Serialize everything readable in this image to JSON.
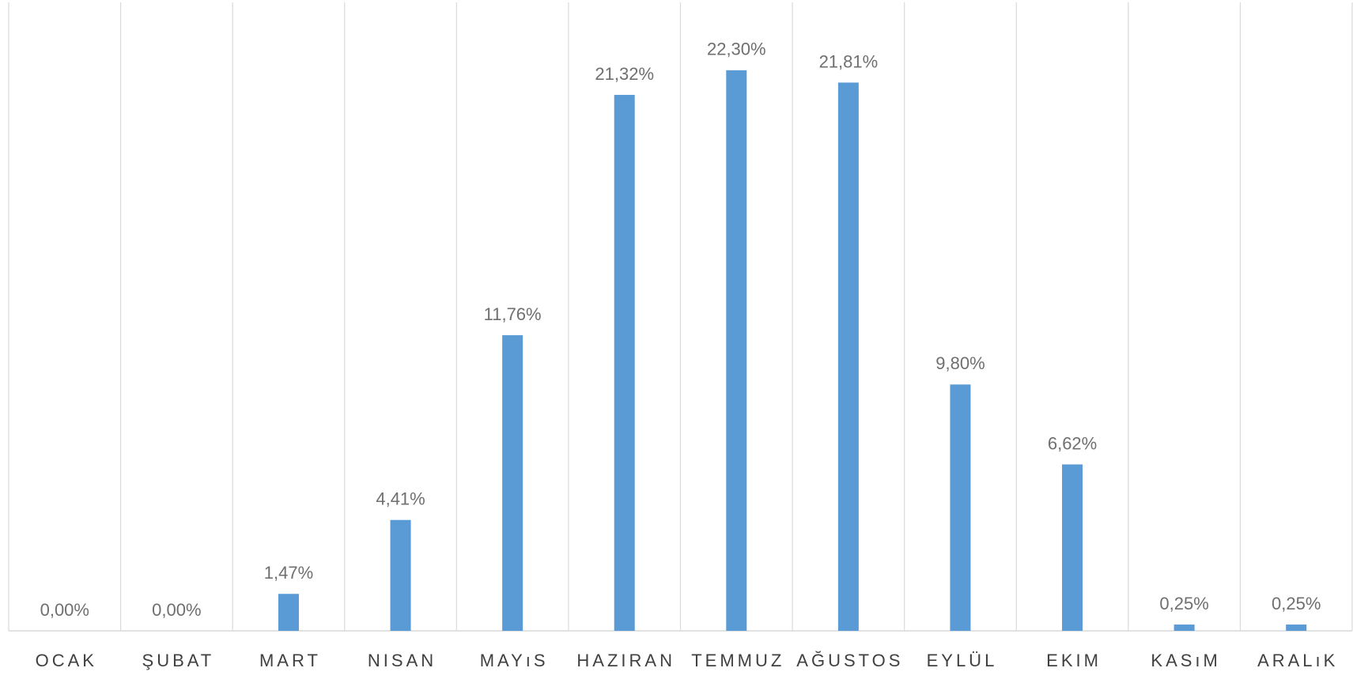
{
  "chart_data": {
    "type": "bar",
    "categories": [
      "OCAK",
      "ŞUBAT",
      "MART",
      "NISAN",
      "MAYıS",
      "HAZIRAN",
      "TEMMUZ",
      "AĞUSTOS",
      "EYLÜL",
      "EKIM",
      "KASıM",
      "ARALıK"
    ],
    "values": [
      0,
      0,
      1.47,
      4.41,
      11.76,
      21.32,
      22.3,
      21.81,
      9.8,
      6.62,
      0.25,
      0.25
    ],
    "value_labels": [
      "0,00%",
      "0,00%",
      "1,47%",
      "4,41%",
      "11,76%",
      "21,32%",
      "22,30%",
      "21,81%",
      "9,80%",
      "6,62%",
      "0,25%",
      "0,25%"
    ],
    "color": "#5b9bd5",
    "ylim": [
      0,
      25
    ]
  }
}
